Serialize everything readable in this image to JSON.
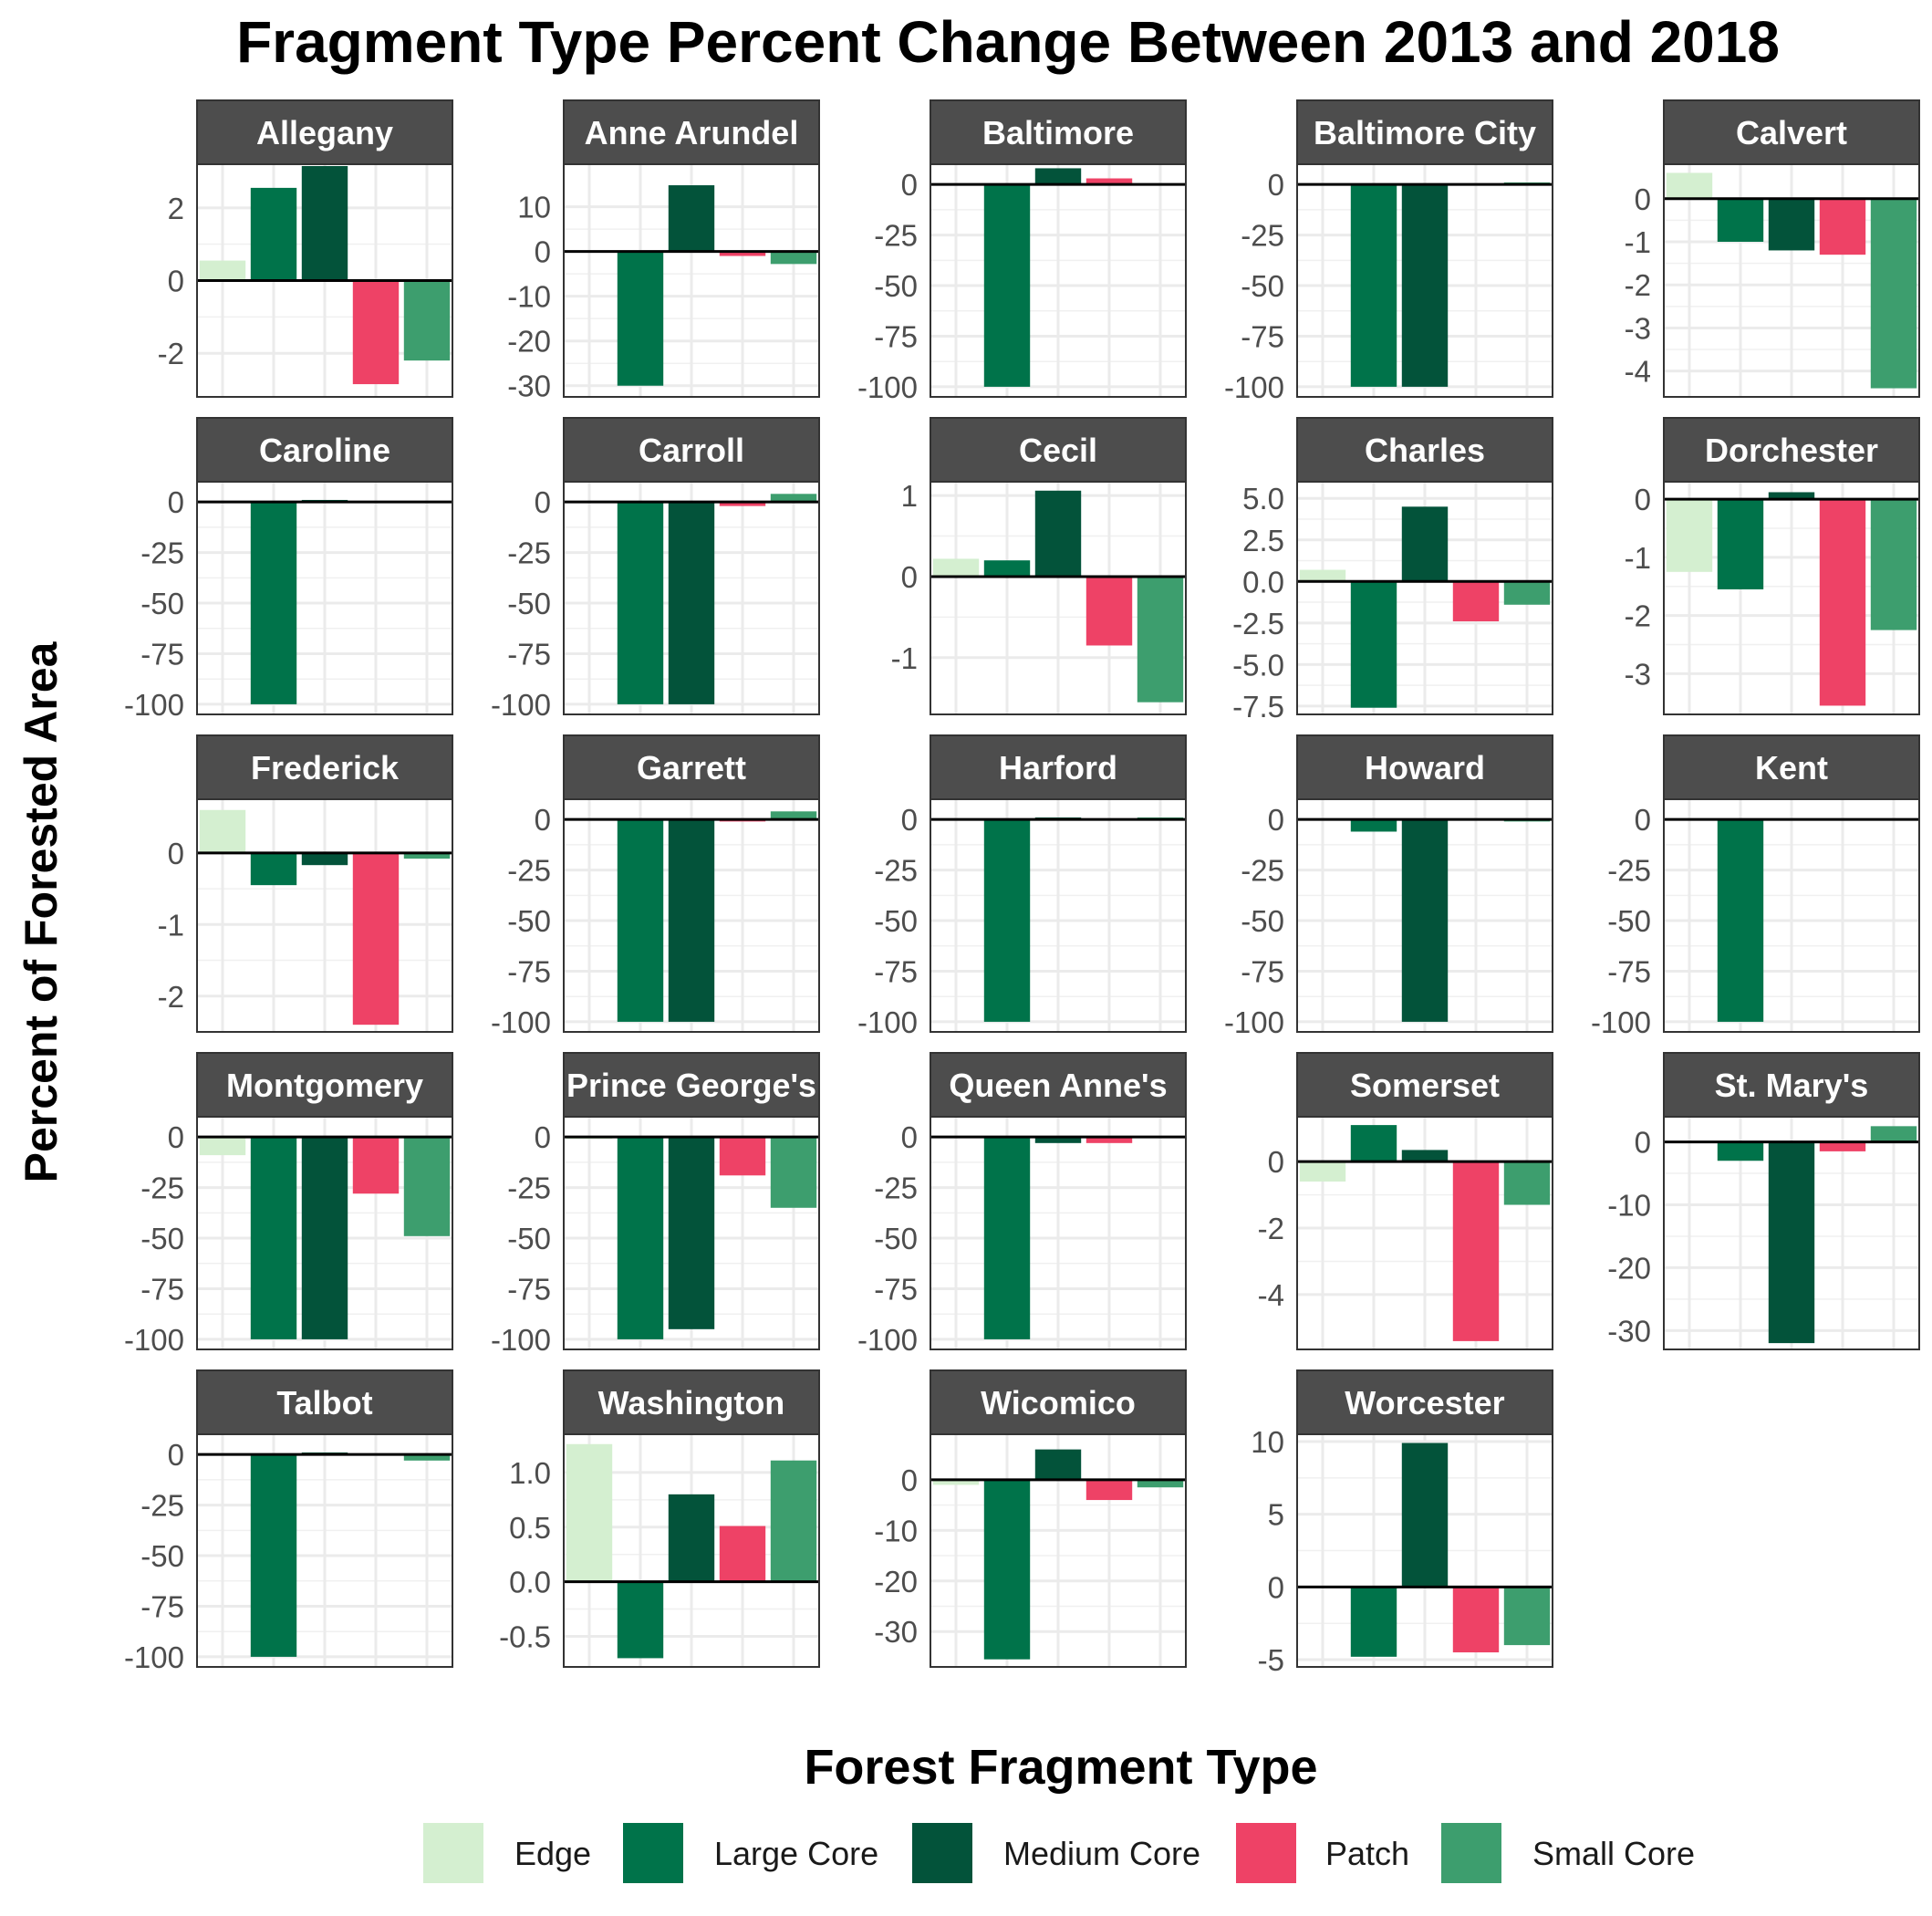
{
  "chart_data": {
    "type": "bar",
    "title": "Fragment Type Percent Change Between 2013 and 2018",
    "xlabel": "Forest Fragment Type",
    "ylabel": "Percent of Forested Area",
    "legend_title": "Forest Fragment Type",
    "legend_position": "bottom",
    "grid": true,
    "categories": [
      "Edge",
      "Large Core",
      "Medium Core",
      "Patch",
      "Small Core"
    ],
    "colors": {
      "Edge": "#d4efd0",
      "Large Core": "#00734a",
      "Medium Core": "#03533a",
      "Patch": "#ee4266",
      "Small Core": "#3d9e6e"
    },
    "facets": [
      {
        "name": "Allegany",
        "values": [
          0.55,
          2.55,
          3.15,
          -2.85,
          -2.2
        ],
        "ylim": [
          -3.2,
          3.2
        ],
        "ticks": [
          -2,
          0,
          2
        ],
        "tick_labels": [
          "-2",
          "0",
          "2"
        ]
      },
      {
        "name": "Anne Arundel",
        "values": [
          0,
          -30,
          14.8,
          -1,
          -2.8
        ],
        "ylim": [
          -32.5,
          19.5
        ],
        "ticks": [
          -30,
          -20,
          -10,
          0,
          10
        ],
        "tick_labels": [
          "-30",
          "-20",
          "-10",
          "0",
          "10"
        ]
      },
      {
        "name": "Baltimore",
        "values": [
          0,
          -100,
          8,
          3,
          0
        ],
        "ylim": [
          -105,
          10
        ],
        "ticks": [
          -100,
          -75,
          -50,
          -25,
          0
        ],
        "tick_labels": [
          "-100",
          "-75",
          "-50",
          "-25",
          "0"
        ]
      },
      {
        "name": "Baltimore City",
        "values": [
          0,
          -100,
          -100,
          0,
          1
        ],
        "ylim": [
          -105,
          10
        ],
        "ticks": [
          -100,
          -75,
          -50,
          -25,
          0
        ],
        "tick_labels": [
          "-100",
          "-75",
          "-50",
          "-25",
          "0"
        ]
      },
      {
        "name": "Calvert",
        "values": [
          0.6,
          -1.0,
          -1.2,
          -1.3,
          -4.4
        ],
        "ylim": [
          -4.6,
          0.8
        ],
        "ticks": [
          -4,
          -3,
          -2,
          -1,
          0
        ],
        "tick_labels": [
          "-4",
          "-3",
          "-2",
          "-1",
          "0"
        ]
      },
      {
        "name": "Caroline",
        "values": [
          0,
          -100,
          1,
          0,
          0
        ],
        "ylim": [
          -105,
          10
        ],
        "ticks": [
          -100,
          -75,
          -50,
          -25,
          0
        ],
        "tick_labels": [
          "-100",
          "-75",
          "-50",
          "-25",
          "0"
        ]
      },
      {
        "name": "Carroll",
        "values": [
          0,
          -100,
          -100,
          -2,
          4
        ],
        "ylim": [
          -105,
          10
        ],
        "ticks": [
          -100,
          -75,
          -50,
          -25,
          0
        ],
        "tick_labels": [
          "-100",
          "-75",
          "-50",
          "-25",
          "0"
        ]
      },
      {
        "name": "Cecil",
        "values": [
          0.22,
          0.2,
          1.06,
          -0.85,
          -1.55
        ],
        "ylim": [
          -1.7,
          1.17
        ],
        "ticks": [
          -1,
          0,
          1
        ],
        "tick_labels": [
          "-1",
          "0",
          "1"
        ]
      },
      {
        "name": "Charles",
        "values": [
          0.7,
          -7.6,
          4.5,
          -2.4,
          -1.4
        ],
        "ylim": [
          -8.0,
          6.0
        ],
        "ticks": [
          -7.5,
          -5.0,
          -2.5,
          0.0,
          2.5,
          5.0
        ],
        "tick_labels": [
          "-7.5",
          "-5.0",
          "-2.5",
          "0.0",
          "2.5",
          "5.0"
        ]
      },
      {
        "name": "Dorchester",
        "values": [
          -1.25,
          -1.55,
          0.12,
          -3.55,
          -2.25
        ],
        "ylim": [
          -3.7,
          0.3
        ],
        "ticks": [
          -3,
          -2,
          -1,
          0
        ],
        "tick_labels": [
          "-3",
          "-2",
          "-1",
          "0"
        ]
      },
      {
        "name": "Frederick",
        "values": [
          0.6,
          -0.45,
          -0.17,
          -2.4,
          -0.08
        ],
        "ylim": [
          -2.5,
          0.75
        ],
        "ticks": [
          -2,
          -1,
          0
        ],
        "tick_labels": [
          "-2",
          "-1",
          "0"
        ]
      },
      {
        "name": "Garrett",
        "values": [
          0,
          -100,
          -100,
          -1,
          4
        ],
        "ylim": [
          -105,
          10
        ],
        "ticks": [
          -100,
          -75,
          -50,
          -25,
          0
        ],
        "tick_labels": [
          "-100",
          "-75",
          "-50",
          "-25",
          "0"
        ]
      },
      {
        "name": "Harford",
        "values": [
          0,
          -100,
          1,
          0,
          1
        ],
        "ylim": [
          -105,
          10
        ],
        "ticks": [
          -100,
          -75,
          -50,
          -25,
          0
        ],
        "tick_labels": [
          "-100",
          "-75",
          "-50",
          "-25",
          "0"
        ]
      },
      {
        "name": "Howard",
        "values": [
          0,
          -6,
          -100,
          0,
          -1
        ],
        "ylim": [
          -105,
          10
        ],
        "ticks": [
          -100,
          -75,
          -50,
          -25,
          0
        ],
        "tick_labels": [
          "-100",
          "-75",
          "-50",
          "-25",
          "0"
        ]
      },
      {
        "name": "Kent",
        "values": [
          0,
          -100,
          0,
          0,
          0
        ],
        "ylim": [
          -105,
          10
        ],
        "ticks": [
          -100,
          -75,
          -50,
          -25,
          0
        ],
        "tick_labels": [
          "-100",
          "-75",
          "-50",
          "-25",
          "0"
        ]
      },
      {
        "name": "Montgomery",
        "values": [
          -9,
          -100,
          -100,
          -28,
          -49
        ],
        "ylim": [
          -105,
          10
        ],
        "ticks": [
          -100,
          -75,
          -50,
          -25,
          0
        ],
        "tick_labels": [
          "-100",
          "-75",
          "-50",
          "-25",
          "0"
        ]
      },
      {
        "name": "Prince George's",
        "values": [
          -1,
          -100,
          -95,
          -19,
          -35
        ],
        "ylim": [
          -105,
          10
        ],
        "ticks": [
          -100,
          -75,
          -50,
          -25,
          0
        ],
        "tick_labels": [
          "-100",
          "-75",
          "-50",
          "-25",
          "0"
        ]
      },
      {
        "name": "Queen Anne's",
        "values": [
          0,
          -100,
          -3,
          -3,
          0
        ],
        "ylim": [
          -105,
          10
        ],
        "ticks": [
          -100,
          -75,
          -50,
          -25,
          0
        ],
        "tick_labels": [
          "-100",
          "-75",
          "-50",
          "-25",
          "0"
        ]
      },
      {
        "name": "Somerset",
        "values": [
          -0.6,
          1.1,
          0.35,
          -5.4,
          -1.3
        ],
        "ylim": [
          -5.65,
          1.35
        ],
        "ticks": [
          -4,
          -2,
          0
        ],
        "tick_labels": [
          "-4",
          "-2",
          "0"
        ]
      },
      {
        "name": "St. Mary's",
        "values": [
          0,
          -3,
          -32,
          -1.5,
          2.5
        ],
        "ylim": [
          -33,
          4
        ],
        "ticks": [
          -30,
          -20,
          -10,
          0
        ],
        "tick_labels": [
          "-30",
          "-20",
          "-10",
          "0"
        ]
      },
      {
        "name": "Talbot",
        "values": [
          0,
          -100,
          1,
          0,
          -3
        ],
        "ylim": [
          -105,
          10
        ],
        "ticks": [
          -100,
          -75,
          -50,
          -25,
          0
        ],
        "tick_labels": [
          "-100",
          "-75",
          "-50",
          "-25",
          "0"
        ]
      },
      {
        "name": "Washington",
        "values": [
          1.26,
          -0.7,
          0.8,
          0.51,
          1.11
        ],
        "ylim": [
          -0.78,
          1.35
        ],
        "ticks": [
          -0.5,
          0.0,
          0.5,
          1.0
        ],
        "tick_labels": [
          "-0.5",
          "0.0",
          "0.5",
          "1.0"
        ]
      },
      {
        "name": "Wicomico",
        "values": [
          -1,
          -35.5,
          6,
          -4,
          -1.5
        ],
        "ylim": [
          -37,
          9
        ],
        "ticks": [
          -30,
          -20,
          -10,
          0
        ],
        "tick_labels": [
          "-30",
          "-20",
          "-10",
          "0"
        ]
      },
      {
        "name": "Worcester",
        "values": [
          0,
          -4.8,
          9.9,
          -4.5,
          -4.0
        ],
        "ylim": [
          -5.5,
          10.5
        ],
        "ticks": [
          -5,
          0,
          5,
          10
        ],
        "tick_labels": [
          "-5",
          "0",
          "5",
          "10"
        ]
      }
    ]
  }
}
